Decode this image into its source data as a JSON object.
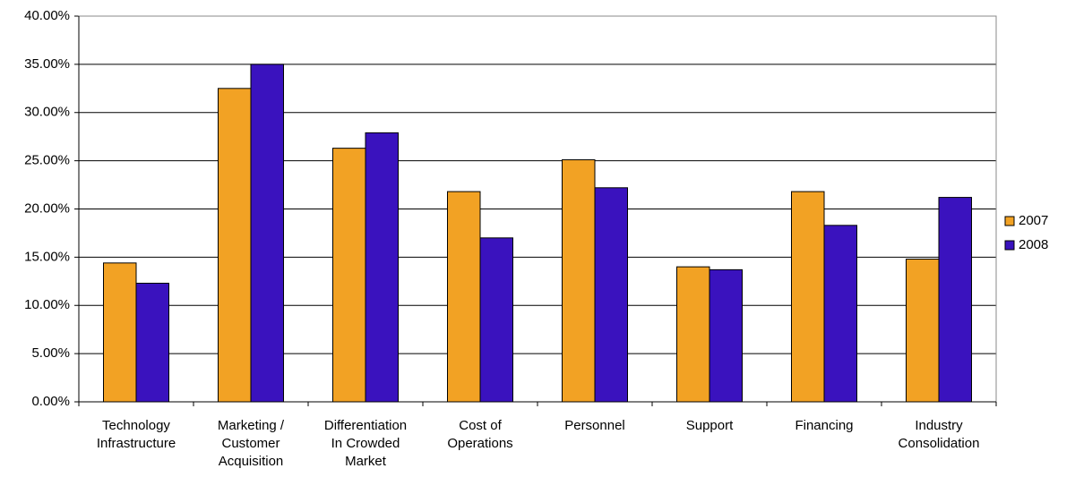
{
  "chart_data": {
    "type": "bar",
    "categories": [
      "Technology\nInfrastructure",
      "Marketing /\nCustomer\nAcquisition",
      "Differentiation\nIn Crowded\nMarket",
      "Cost of\nOperations",
      "Personnel",
      "Support",
      "Financing",
      "Industry\nConsolidation"
    ],
    "series": [
      {
        "name": "2007",
        "color": "#f2a224",
        "values": [
          14.4,
          32.5,
          26.3,
          21.8,
          25.1,
          14.0,
          21.8,
          14.8
        ]
      },
      {
        "name": "2008",
        "color": "#3a12be",
        "values": [
          12.3,
          35.0,
          27.9,
          17.0,
          22.2,
          13.7,
          18.3,
          21.2
        ]
      }
    ],
    "ylim": [
      0,
      40
    ],
    "yticks": [
      {
        "value": 0,
        "label": "0.00%"
      },
      {
        "value": 5,
        "label": "5.00%"
      },
      {
        "value": 10,
        "label": "10.00%"
      },
      {
        "value": 15,
        "label": "15.00%"
      },
      {
        "value": 20,
        "label": "20.00%"
      },
      {
        "value": 25,
        "label": "25.00%"
      },
      {
        "value": 30,
        "label": "30.00%"
      },
      {
        "value": 35,
        "label": "35.00%"
      },
      {
        "value": 40,
        "label": "40.00%"
      }
    ],
    "grid": true,
    "legend": "right"
  }
}
